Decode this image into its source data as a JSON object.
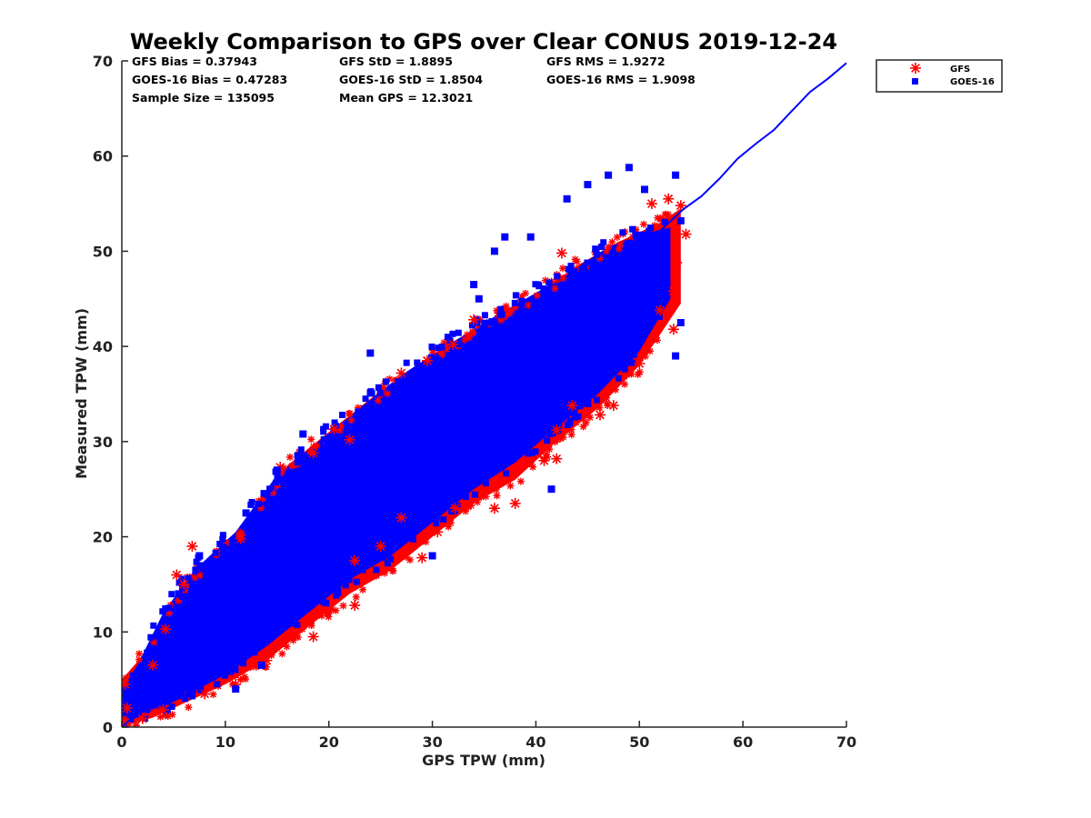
{
  "chart_data": {
    "type": "scatter",
    "title": "Weekly Comparison to GPS over Clear CONUS 2019-12-24",
    "xlabel": "GPS TPW (mm)",
    "ylabel": "Measured TPW (mm)",
    "xlim": [
      0,
      70
    ],
    "ylim": [
      0,
      70
    ],
    "x_ticks": [
      "0",
      "10",
      "20",
      "30",
      "40",
      "50",
      "60",
      "70"
    ],
    "y_ticks": [
      "0",
      "10",
      "20",
      "30",
      "40",
      "50",
      "60",
      "70"
    ],
    "grid": false,
    "legend_position": "outside top-right",
    "stats": [
      [
        "GFS Bias = 0.37943",
        "GFS StD = 1.8895",
        "GFS RMS = 1.9272"
      ],
      [
        "GOES-16 Bias = 0.47283",
        "GOES-16 StD = 1.8504",
        "GOES-16 RMS = 1.9098"
      ],
      [
        "Sample Size = 135095",
        "Mean GPS = 12.3021",
        ""
      ]
    ],
    "series": [
      {
        "name": "GFS",
        "marker": "asterisk",
        "color": "#ff0000",
        "points": [
          [
            6.8,
            19.0
          ],
          [
            5.3,
            16.0
          ],
          [
            4.2,
            10.3
          ],
          [
            11.5,
            19.8
          ],
          [
            15.3,
            27.3
          ],
          [
            18.5,
            28.8
          ],
          [
            20.5,
            31.3
          ],
          [
            22.0,
            30.2
          ],
          [
            27.0,
            37.2
          ],
          [
            29.5,
            38.5
          ],
          [
            32.0,
            40.2
          ],
          [
            34.0,
            42.8
          ],
          [
            42.5,
            49.8
          ],
          [
            51.2,
            55.0
          ],
          [
            52.8,
            55.5
          ],
          [
            54.0,
            54.8
          ],
          [
            54.5,
            51.8
          ],
          [
            53.6,
            48.8
          ],
          [
            53.3,
            45.8
          ],
          [
            52.0,
            43.8
          ],
          [
            53.3,
            41.8
          ],
          [
            50.0,
            38.2
          ],
          [
            47.5,
            33.8
          ],
          [
            46.2,
            32.8
          ],
          [
            43.5,
            33.8
          ],
          [
            42.0,
            31.2
          ],
          [
            42.0,
            28.2
          ],
          [
            40.8,
            28.0
          ],
          [
            38.0,
            23.5
          ],
          [
            36.0,
            23.0
          ],
          [
            32.2,
            23.0
          ],
          [
            30.5,
            20.5
          ],
          [
            29.0,
            17.8
          ],
          [
            27.0,
            22.0
          ],
          [
            25.0,
            19.0
          ],
          [
            22.5,
            17.5
          ],
          [
            22.5,
            12.8
          ],
          [
            19.0,
            12.0
          ],
          [
            18.5,
            9.5
          ],
          [
            14.0,
            7.0
          ],
          [
            11.0,
            4.5
          ],
          [
            8.0,
            3.5
          ],
          [
            4.0,
            1.8
          ],
          [
            2.0,
            0.9
          ],
          [
            0.3,
            0.5
          ],
          [
            0.5,
            2.0
          ],
          [
            0.3,
            4.5
          ],
          [
            3.0,
            6.5
          ],
          [
            6.0,
            15.0
          ]
        ]
      },
      {
        "name": "GOES-16",
        "marker": "square",
        "color": "#0000ff",
        "points": [
          [
            49.0,
            58.8
          ],
          [
            47.0,
            58.0
          ],
          [
            53.5,
            58.0
          ],
          [
            45.0,
            57.0
          ],
          [
            50.5,
            56.5
          ],
          [
            43.0,
            55.5
          ],
          [
            39.5,
            51.5
          ],
          [
            34.0,
            46.5
          ],
          [
            34.5,
            45.0
          ],
          [
            24.0,
            39.3
          ],
          [
            17.5,
            30.8
          ],
          [
            15.0,
            27.0
          ],
          [
            14.0,
            24.5
          ],
          [
            12.0,
            22.5
          ],
          [
            5.5,
            14.0
          ],
          [
            7.5,
            18.0
          ],
          [
            53.5,
            39.0
          ],
          [
            54.0,
            42.5
          ],
          [
            54.0,
            53.2
          ],
          [
            49.0,
            38.5
          ],
          [
            30.0,
            18.0
          ],
          [
            41.5,
            25.0
          ],
          [
            45.0,
            34.0
          ],
          [
            13.5,
            6.5
          ],
          [
            11.0,
            4.0
          ],
          [
            37.0,
            51.5
          ],
          [
            36.0,
            50.0
          ]
        ]
      }
    ],
    "line": {
      "name": "1:1 line",
      "color": "#0000ff",
      "x": [
        0,
        70
      ],
      "y": [
        0,
        70
      ]
    }
  }
}
